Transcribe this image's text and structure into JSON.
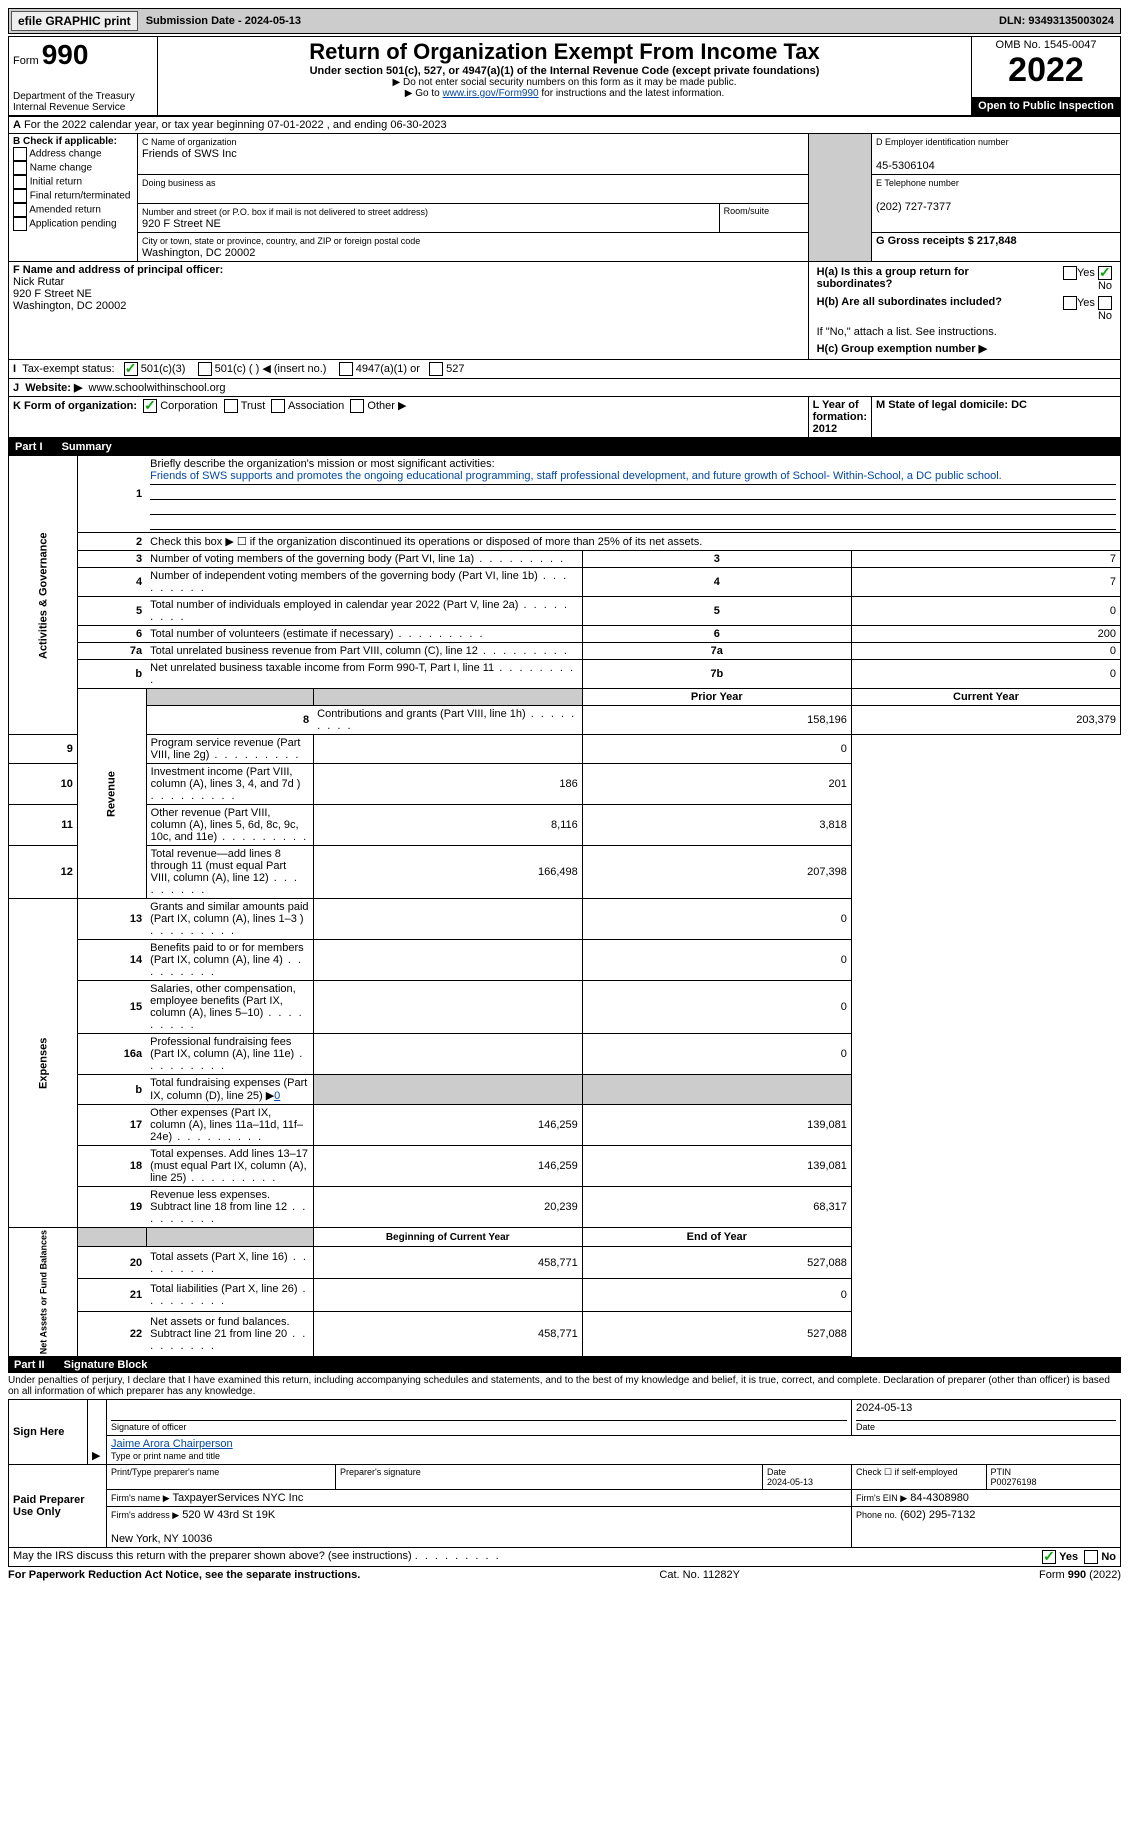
{
  "topbar": {
    "efile_btn": "efile GRAPHIC print",
    "sub_date_label": "Submission Date - 2024-05-13",
    "dln": "DLN: 93493135003024"
  },
  "header": {
    "form_prefix": "Form",
    "form_number": "990",
    "dept": "Department of the Treasury",
    "irs": "Internal Revenue Service",
    "title": "Return of Organization Exempt From Income Tax",
    "subtitle": "Under section 501(c), 527, or 4947(a)(1) of the Internal Revenue Code (except private foundations)",
    "note1": "▶ Do not enter social security numbers on this form as it may be made public.",
    "note2_pre": "▶ Go to ",
    "note2_link": "www.irs.gov/Form990",
    "note2_post": " for instructions and the latest information.",
    "omb": "OMB No. 1545-0047",
    "year": "2022",
    "open": "Open to Public Inspection"
  },
  "sectionA": {
    "cal_year": "For the 2022 calendar year, or tax year beginning 07-01-2022   , and ending 06-30-2023",
    "b_label": "B Check if applicable:",
    "b_opts": [
      "Address change",
      "Name change",
      "Initial return",
      "Final return/terminated",
      "Amended return",
      "Application pending"
    ],
    "c_label": "C Name of organization",
    "c_name": "Friends of SWS Inc",
    "dba_label": "Doing business as",
    "addr_label": "Number and street (or P.O. box if mail is not delivered to street address)",
    "addr": "920 F Street NE",
    "room": "Room/suite",
    "city_label": "City or town, state or province, country, and ZIP or foreign postal code",
    "city": "Washington, DC  20002",
    "d_label": "D Employer identification number",
    "d_val": "45-5306104",
    "e_label": "E Telephone number",
    "e_val": "(202) 727-7377",
    "g_label": "G Gross receipts $ 217,848",
    "f_label": "F  Name and address of principal officer:",
    "f_name": "Nick Rutar",
    "f_addr1": "920 F Street NE",
    "f_addr2": "Washington, DC  20002",
    "ha_label": "H(a)  Is this a group return for subordinates?",
    "hb_label": "H(b)  Are all subordinates included?",
    "hb_note": "If \"No,\" attach a list. See instructions.",
    "hc_label": "H(c)  Group exemption number ▶",
    "yes": "Yes",
    "no": "No",
    "i_label": "Tax-exempt status:",
    "i_501c3": "501(c)(3)",
    "i_501c": "501(c) (  ) ◀ (insert no.)",
    "i_4947": "4947(a)(1) or",
    "i_527": "527",
    "j_label": "Website: ▶",
    "j_val": "www.schoolwithinschool.org",
    "k_label": "K Form of organization:",
    "k_corp": "Corporation",
    "k_trust": "Trust",
    "k_assoc": "Association",
    "k_other": "Other ▶",
    "l_label": "L Year of formation: 2012",
    "m_label": "M State of legal domicile: DC"
  },
  "part1": {
    "header": "Part I",
    "title": "Summary",
    "side_gov": "Activities & Governance",
    "side_rev": "Revenue",
    "side_exp": "Expenses",
    "side_net": "Net Assets or Fund Balances",
    "line1_label": "Briefly describe the organization's mission or most significant activities:",
    "line1_text": "Friends of SWS supports and promotes the ongoing educational programming, staff professional development, and future growth of School- Within-School, a DC public school.",
    "line2": "Check this box ▶ ☐  if the organization discontinued its operations or disposed of more than 25% of its net assets.",
    "lines": [
      {
        "n": "3",
        "t": "Number of voting members of the governing body (Part VI, line 1a)",
        "box": "3",
        "v": "7"
      },
      {
        "n": "4",
        "t": "Number of independent voting members of the governing body (Part VI, line 1b)",
        "box": "4",
        "v": "7"
      },
      {
        "n": "5",
        "t": "Total number of individuals employed in calendar year 2022 (Part V, line 2a)",
        "box": "5",
        "v": "0"
      },
      {
        "n": "6",
        "t": "Total number of volunteers (estimate if necessary)",
        "box": "6",
        "v": "200"
      },
      {
        "n": "7a",
        "t": "Total unrelated business revenue from Part VIII, column (C), line 12",
        "box": "7a",
        "v": "0"
      },
      {
        "n": "b",
        "t": "Net unrelated business taxable income from Form 990-T, Part I, line 11",
        "box": "7b",
        "v": "0"
      }
    ],
    "prior_label": "Prior Year",
    "current_label": "Current Year",
    "rev_lines": [
      {
        "n": "8",
        "t": "Contributions and grants (Part VIII, line 1h)",
        "p": "158,196",
        "c": "203,379"
      },
      {
        "n": "9",
        "t": "Program service revenue (Part VIII, line 2g)",
        "p": "",
        "c": "0"
      },
      {
        "n": "10",
        "t": "Investment income (Part VIII, column (A), lines 3, 4, and 7d )",
        "p": "186",
        "c": "201"
      },
      {
        "n": "11",
        "t": "Other revenue (Part VIII, column (A), lines 5, 6d, 8c, 9c, 10c, and 11e)",
        "p": "8,116",
        "c": "3,818"
      },
      {
        "n": "12",
        "t": "Total revenue—add lines 8 through 11 (must equal Part VIII, column (A), line 12)",
        "p": "166,498",
        "c": "207,398"
      }
    ],
    "exp_lines": [
      {
        "n": "13",
        "t": "Grants and similar amounts paid (Part IX, column (A), lines 1–3 )",
        "p": "",
        "c": "0"
      },
      {
        "n": "14",
        "t": "Benefits paid to or for members (Part IX, column (A), line 4)",
        "p": "",
        "c": "0"
      },
      {
        "n": "15",
        "t": "Salaries, other compensation, employee benefits (Part IX, column (A), lines 5–10)",
        "p": "",
        "c": "0"
      },
      {
        "n": "16a",
        "t": "Professional fundraising fees (Part IX, column (A), line 11e)",
        "p": "",
        "c": "0"
      },
      {
        "n": "b",
        "t": "Total fundraising expenses (Part IX, column (D), line 25) ▶0",
        "p": "GRAY",
        "c": "GRAY"
      },
      {
        "n": "17",
        "t": "Other expenses (Part IX, column (A), lines 11a–11d, 11f–24e)",
        "p": "146,259",
        "c": "139,081"
      },
      {
        "n": "18",
        "t": "Total expenses. Add lines 13–17 (must equal Part IX, column (A), line 25)",
        "p": "146,259",
        "c": "139,081"
      },
      {
        "n": "19",
        "t": "Revenue less expenses. Subtract line 18 from line 12",
        "p": "20,239",
        "c": "68,317"
      }
    ],
    "begin_label": "Beginning of Current Year",
    "end_label": "End of Year",
    "net_lines": [
      {
        "n": "20",
        "t": "Total assets (Part X, line 16)",
        "p": "458,771",
        "c": "527,088"
      },
      {
        "n": "21",
        "t": "Total liabilities (Part X, line 26)",
        "p": "",
        "c": "0"
      },
      {
        "n": "22",
        "t": "Net assets or fund balances. Subtract line 21 from line 20",
        "p": "458,771",
        "c": "527,088"
      }
    ]
  },
  "part2": {
    "header": "Part II",
    "title": "Signature Block",
    "perjury": "Under penalties of perjury, I declare that I have examined this return, including accompanying schedules and statements, and to the best of my knowledge and belief, it is true, correct, and complete. Declaration of preparer (other than officer) is based on all information of which preparer has any knowledge.",
    "sign_here": "Sign Here",
    "sig_officer": "Signature of officer",
    "sig_date": "2024-05-13",
    "date_label": "Date",
    "officer_name": "Jaime Arora  Chairperson",
    "type_name": "Type or print name and title",
    "paid_prep": "Paid Preparer Use Only",
    "prep_name_label": "Print/Type preparer's name",
    "prep_sig_label": "Preparer's signature",
    "prep_date_label": "Date",
    "prep_date": "2024-05-13",
    "check_self": "Check ☐ if self-employed",
    "ptin_label": "PTIN",
    "ptin": "P00276198",
    "firm_name_label": "Firm's name    ▶",
    "firm_name": "TaxpayerServices NYC Inc",
    "firm_ein_label": "Firm's EIN ▶",
    "firm_ein": "84-4308980",
    "firm_addr_label": "Firm's address ▶",
    "firm_addr": "520 W 43rd St 19K",
    "firm_city": "New York, NY  10036",
    "phone_label": "Phone no.",
    "phone": "(602) 295-7132",
    "discuss": "May the IRS discuss this return with the preparer shown above? (see instructions)"
  },
  "footer": {
    "pra": "For Paperwork Reduction Act Notice, see the separate instructions.",
    "cat": "Cat. No. 11282Y",
    "form": "Form 990 (2022)"
  }
}
